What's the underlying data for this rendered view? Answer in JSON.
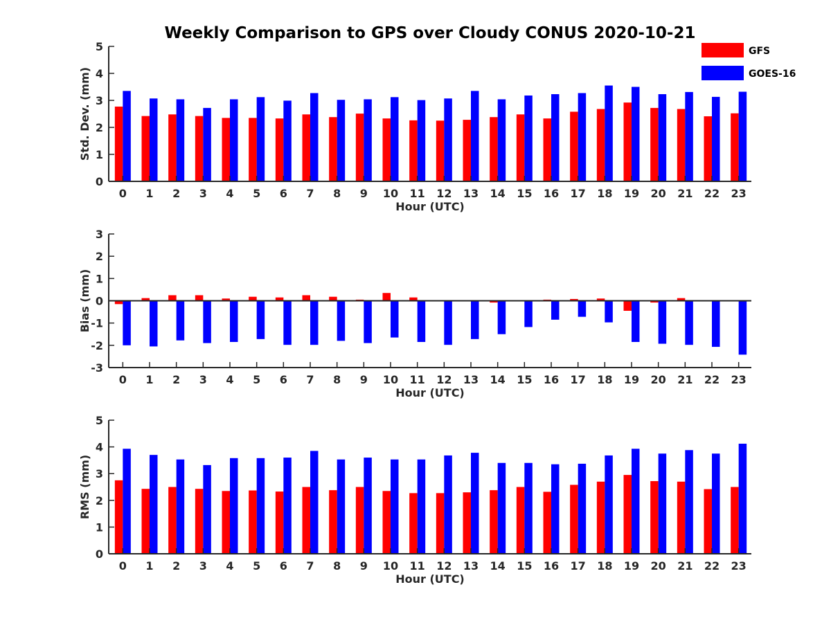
{
  "title": "Weekly Comparison to GPS over Cloudy CONUS 2020-10-21",
  "colors": {
    "GFS": "#ff0000",
    "GOES-16": "#0000ff",
    "axis": "#262626"
  },
  "legend": {
    "placement": "top-right",
    "entries": [
      "GFS",
      "GOES-16"
    ]
  },
  "chart_data": [
    {
      "type": "bar",
      "categories": [
        "0",
        "1",
        "2",
        "3",
        "4",
        "5",
        "6",
        "7",
        "8",
        "9",
        "10",
        "11",
        "12",
        "13",
        "14",
        "15",
        "16",
        "17",
        "18",
        "19",
        "20",
        "21",
        "22",
        "23"
      ],
      "xlabel": "Hour (UTC)",
      "ylabel": "Std. Dev. (mm)",
      "ylim": [
        0,
        5
      ],
      "yticks": [
        "0",
        "1",
        "2",
        "3",
        "4",
        "5"
      ],
      "grid": false,
      "series": [
        {
          "name": "GFS",
          "values": [
            2.77,
            2.42,
            2.48,
            2.42,
            2.35,
            2.35,
            2.33,
            2.48,
            2.38,
            2.51,
            2.33,
            2.26,
            2.25,
            2.28,
            2.38,
            2.48,
            2.33,
            2.58,
            2.68,
            2.92,
            2.72,
            2.68,
            2.41,
            2.52
          ]
        },
        {
          "name": "GOES-16",
          "values": [
            3.35,
            3.07,
            3.04,
            2.72,
            3.04,
            3.12,
            2.99,
            3.27,
            3.02,
            3.04,
            3.12,
            3.01,
            3.07,
            3.35,
            3.04,
            3.18,
            3.23,
            3.27,
            3.55,
            3.5,
            3.23,
            3.31,
            3.13,
            3.32
          ]
        }
      ]
    },
    {
      "type": "bar",
      "categories": [
        "0",
        "1",
        "2",
        "3",
        "4",
        "5",
        "6",
        "7",
        "8",
        "9",
        "10",
        "11",
        "12",
        "13",
        "14",
        "15",
        "16",
        "17",
        "18",
        "19",
        "20",
        "21",
        "22",
        "23"
      ],
      "xlabel": "Hour (UTC)",
      "ylabel": "Bias (mm)",
      "ylim": [
        -3,
        3
      ],
      "yticks": [
        "-3",
        "-2",
        "-1",
        "0",
        "1",
        "2",
        "3"
      ],
      "grid": false,
      "series": [
        {
          "name": "GFS",
          "values": [
            -0.15,
            0.12,
            0.25,
            0.25,
            0.1,
            0.18,
            0.15,
            0.25,
            0.18,
            0.05,
            0.35,
            0.15,
            -0.02,
            0.02,
            -0.08,
            0.0,
            0.05,
            0.08,
            0.1,
            -0.45,
            -0.08,
            0.12,
            0.02,
            -0.02
          ]
        },
        {
          "name": "GOES-16",
          "values": [
            -2.0,
            -2.05,
            -1.78,
            -1.9,
            -1.85,
            -1.72,
            -1.98,
            -1.98,
            -1.8,
            -1.9,
            -1.65,
            -1.85,
            -1.98,
            -1.72,
            -1.5,
            -1.18,
            -0.85,
            -0.72,
            -0.97,
            -1.85,
            -1.93,
            -1.98,
            -2.07,
            -2.42
          ]
        }
      ]
    },
    {
      "type": "bar",
      "categories": [
        "0",
        "1",
        "2",
        "3",
        "4",
        "5",
        "6",
        "7",
        "8",
        "9",
        "10",
        "11",
        "12",
        "13",
        "14",
        "15",
        "16",
        "17",
        "18",
        "19",
        "20",
        "21",
        "22",
        "23"
      ],
      "xlabel": "Hour (UTC)",
      "ylabel": "RMS (mm)",
      "ylim": [
        0,
        5
      ],
      "yticks": [
        "0",
        "1",
        "2",
        "3",
        "4",
        "5"
      ],
      "grid": false,
      "series": [
        {
          "name": "GFS",
          "values": [
            2.75,
            2.43,
            2.5,
            2.43,
            2.35,
            2.37,
            2.33,
            2.5,
            2.38,
            2.5,
            2.35,
            2.27,
            2.27,
            2.3,
            2.38,
            2.5,
            2.32,
            2.58,
            2.7,
            2.95,
            2.72,
            2.7,
            2.42,
            2.5
          ]
        },
        {
          "name": "GOES-16",
          "values": [
            3.93,
            3.7,
            3.53,
            3.32,
            3.58,
            3.58,
            3.6,
            3.85,
            3.53,
            3.6,
            3.53,
            3.53,
            3.68,
            3.78,
            3.4,
            3.4,
            3.35,
            3.37,
            3.68,
            3.93,
            3.75,
            3.88,
            3.75,
            4.12
          ]
        }
      ]
    }
  ]
}
